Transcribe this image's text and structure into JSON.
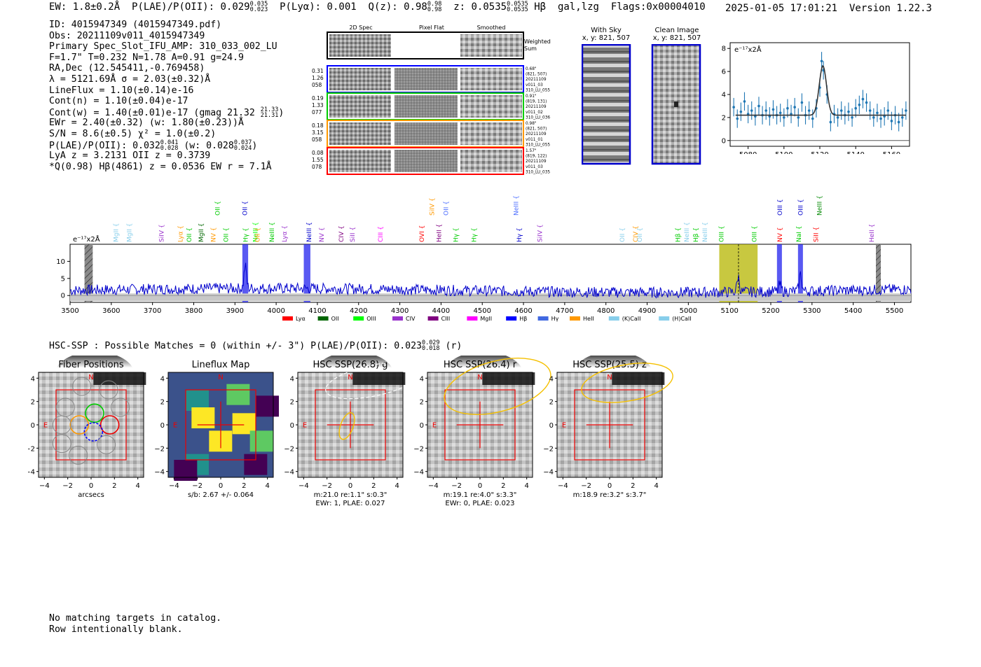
{
  "header": {
    "ew": "1.8±0.2Å",
    "plae_label": "P(LAE)/P(OII):",
    "plae_val": "0.029",
    "plae_hi": "0.035",
    "plae_lo": "0.023",
    "plya_label": "P(Lyα):",
    "plya_val": "0.001",
    "qz_label": "Q(z):",
    "qz_val": "0.98",
    "qz_hi": "0.98",
    "qz_lo": "0.98",
    "z_label": "z:",
    "z_val": "0.0535",
    "z_hi": "0.0535",
    "z_lo": "0.0535",
    "z_line": "Hβ",
    "tags": "gal,lzg",
    "flags": "Flags:0x00004010",
    "timestamp": "2025-01-05 17:01:21",
    "version": "Version 1.22.3"
  },
  "info": {
    "id": "ID: 4015947349 (4015947349.pdf)",
    "obs": "Obs: 20211109v011_4015947349",
    "slot": "Primary Spec_Slot_IFU_AMP: 310_033_002_LU",
    "params": "F=1.7\"  T=0.232  N=1.78  A=0.91  g=24.9",
    "radec": "RA,Dec (12.545411,-0.769458)",
    "lambda": "λ = 5121.69Å   σ = 2.03(±0.32)Å",
    "lineflux": "LineFlux = 1.10(±0.14)e-16",
    "contn": "Cont(n) = 1.10(±0.04)e-17",
    "contw": "Cont(w) = 1.40(±0.01)e-17 (gmag 21.32",
    "contw_hi": "21.33",
    "contw_lo": "21.31",
    "ewr": "EWr = 2.40(±0.32) (w: 1.80(±0.23))Å",
    "sn": "S/N = 8.6(±0.5)  χ² = 1.0(±0.2)",
    "plae2": "P(LAE)/P(OII): 0.032",
    "plae2_hi": "0.041",
    "plae2_lo": "0.028",
    "plae2_w": "(w: 0.028",
    "plae2_w_hi": "0.037",
    "plae2_w_lo": "0.024",
    "lya": "LyA z = 3.2131  OII z = 0.3739",
    "q": "*Q(0.98) Hβ(4861) z = 0.0536  EW r = 7.1Å"
  },
  "cutouts": {
    "col_headers": [
      "2D Spec",
      "Pixel Flat",
      "Smoothed"
    ],
    "weighted_label": "Weighted Sum",
    "rows": [
      {
        "left": [
          "0.31",
          "1.26",
          "058"
        ],
        "right": [
          "0.68\"",
          "(821, 507)",
          "20211109",
          "v011_03",
          "310_LU_055"
        ],
        "color": "#0000ff"
      },
      {
        "left": [
          "0.19",
          "1.33",
          "077"
        ],
        "right": [
          "0.91\"",
          "(819, 131)",
          "20211109",
          "v011_02",
          "310_LU_036"
        ],
        "color": "#00cc00"
      },
      {
        "left": [
          "0.18",
          "3.15",
          "058"
        ],
        "right": [
          "0.98\"",
          "(821, 507)",
          "20211109",
          "v011_01",
          "310_LU_055"
        ],
        "color": "#ff9900"
      },
      {
        "left": [
          "0.08",
          "1.55",
          "078"
        ],
        "right": [
          "1.57\"",
          "(819, 122)",
          "20211109",
          "v011_03",
          "310_LU_035"
        ],
        "color": "#ff0000"
      }
    ]
  },
  "images": {
    "with_sky": "With Sky",
    "with_sky_xy": "x, y: 821, 507",
    "clean": "Clean Image",
    "clean_xy": "x, y: 821, 507"
  },
  "zoom_chart": {
    "type": "line",
    "yunit": "e⁻¹⁷x2Å",
    "xlim": [
      5070,
      5170
    ],
    "ylim": [
      -0.5,
      8.5
    ],
    "xticks": [
      5080,
      5100,
      5120,
      5140,
      5160
    ],
    "yticks": [
      0,
      2,
      4,
      6,
      8
    ],
    "points": [
      {
        "x": 5072,
        "y": 2.9
      },
      {
        "x": 5074,
        "y": 1.9
      },
      {
        "x": 5076,
        "y": 2.5
      },
      {
        "x": 5078,
        "y": 3.4
      },
      {
        "x": 5080,
        "y": 2.3
      },
      {
        "x": 5082,
        "y": 2.6
      },
      {
        "x": 5084,
        "y": 2.1
      },
      {
        "x": 5086,
        "y": 3.0
      },
      {
        "x": 5088,
        "y": 2.2
      },
      {
        "x": 5090,
        "y": 2.6
      },
      {
        "x": 5092,
        "y": 2.1
      },
      {
        "x": 5094,
        "y": 2.7
      },
      {
        "x": 5096,
        "y": 2.2
      },
      {
        "x": 5098,
        "y": 2.4
      },
      {
        "x": 5100,
        "y": 2.0
      },
      {
        "x": 5102,
        "y": 2.8
      },
      {
        "x": 5104,
        "y": 2.3
      },
      {
        "x": 5106,
        "y": 2.9
      },
      {
        "x": 5108,
        "y": 2.0
      },
      {
        "x": 5110,
        "y": 3.3
      },
      {
        "x": 5112,
        "y": 2.2
      },
      {
        "x": 5114,
        "y": 2.6
      },
      {
        "x": 5116,
        "y": 1.9
      },
      {
        "x": 5118,
        "y": 2.8
      },
      {
        "x": 5120,
        "y": 4.6
      },
      {
        "x": 5121,
        "y": 6.9
      },
      {
        "x": 5122,
        "y": 6.1
      },
      {
        "x": 5124,
        "y": 4.0
      },
      {
        "x": 5126,
        "y": 1.6
      },
      {
        "x": 5128,
        "y": 2.3
      },
      {
        "x": 5130,
        "y": 2.0
      },
      {
        "x": 5132,
        "y": 2.6
      },
      {
        "x": 5134,
        "y": 2.2
      },
      {
        "x": 5136,
        "y": 2.5
      },
      {
        "x": 5138,
        "y": 2.0
      },
      {
        "x": 5140,
        "y": 2.8
      },
      {
        "x": 5142,
        "y": 3.1
      },
      {
        "x": 5144,
        "y": 3.6
      },
      {
        "x": 5146,
        "y": 3.3
      },
      {
        "x": 5148,
        "y": 2.6
      },
      {
        "x": 5150,
        "y": 2.0
      },
      {
        "x": 5152,
        "y": 2.4
      },
      {
        "x": 5154,
        "y": 1.9
      },
      {
        "x": 5156,
        "y": 2.1
      },
      {
        "x": 5158,
        "y": 2.6
      },
      {
        "x": 5160,
        "y": 1.7
      },
      {
        "x": 5162,
        "y": 2.2
      },
      {
        "x": 5164,
        "y": 1.6
      },
      {
        "x": 5166,
        "y": 2.0
      },
      {
        "x": 5168,
        "y": 2.6
      }
    ],
    "model": {
      "baseline": 2.2,
      "amp": 4.3,
      "center": 5121.69,
      "sigma": 2.03
    }
  },
  "spectrum": {
    "type": "line",
    "yunit": "e⁻¹⁷x2Å",
    "xlim": [
      3500,
      5540
    ],
    "ylim": [
      -2,
      15
    ],
    "xticks": [
      3500,
      3600,
      3700,
      3800,
      3900,
      4000,
      4100,
      4200,
      4300,
      4400,
      4500,
      4600,
      4700,
      4800,
      4900,
      5000,
      5100,
      5200,
      5300,
      5400,
      5500
    ],
    "yticks": [
      0,
      5,
      10
    ],
    "peaks": [
      {
        "x": 3925,
        "amp": 6.5,
        "w": 3
      },
      {
        "x": 5121,
        "amp": 4.5,
        "w": 3
      },
      {
        "x": 5272,
        "amp": 5.0,
        "w": 3
      },
      {
        "x": 5222,
        "amp": 2.0,
        "w": 3
      }
    ],
    "bands": [
      {
        "x0": 3535,
        "x1": 3555,
        "color": "#555555",
        "hatch": true
      },
      {
        "x0": 3918,
        "x1": 3932,
        "color": "#2222ee"
      },
      {
        "x0": 4067,
        "x1": 4083,
        "color": "#2222ee"
      },
      {
        "x0": 5075,
        "x1": 5168,
        "color": "#b5b500"
      },
      {
        "x0": 5215,
        "x1": 5227,
        "color": "#2222ee"
      },
      {
        "x0": 5266,
        "x1": 5278,
        "color": "#2222ee"
      },
      {
        "x0": 5455,
        "x1": 5467,
        "color": "#555555",
        "hatch": true
      }
    ],
    "lines_low": [
      {
        "x": 3611,
        "name": "MgII",
        "color": "#87ceeb"
      },
      {
        "x": 3644,
        "name": "MgII",
        "color": "#87ceeb"
      },
      {
        "x": 3722,
        "name": "SiIV",
        "color": "#9932cc"
      },
      {
        "x": 3768,
        "name": "Lyα",
        "color": "#ff9900"
      },
      {
        "x": 3789,
        "name": "OII",
        "color": "#00cc00"
      },
      {
        "x": 3818,
        "name": "MgII",
        "color": "#006600"
      },
      {
        "x": 3848,
        "name": "NV",
        "color": "#ff9900"
      },
      {
        "x": 3878,
        "name": "OII",
        "color": "#00cc00"
      },
      {
        "x": 3926,
        "name": "Hγ",
        "color": "#00cc00"
      },
      {
        "x": 3950,
        "name": "NeIII",
        "color": "#00ff00"
      },
      {
        "x": 3955,
        "name": "OII",
        "color": "#ff9900"
      },
      {
        "x": 3990,
        "name": "NeIII",
        "color": "#00cc00"
      },
      {
        "x": 4020,
        "name": "Lyα",
        "color": "#9932cc"
      },
      {
        "x": 4080,
        "name": "NeIII",
        "color": "#0000cc"
      },
      {
        "x": 4110,
        "name": "NV",
        "color": "#9932cc"
      },
      {
        "x": 4158,
        "name": "CIV",
        "color": "#800080"
      },
      {
        "x": 4185,
        "name": "SiII",
        "color": "#9932cc"
      },
      {
        "x": 4253,
        "name": "CIII",
        "color": "#ff00ff"
      },
      {
        "x": 4353,
        "name": "OVI",
        "color": "#ff0000"
      },
      {
        "x": 4395,
        "name": "HeII",
        "color": "#800080"
      },
      {
        "x": 4436,
        "name": "Hγ",
        "color": "#00cc00"
      },
      {
        "x": 4480,
        "name": "Hγ",
        "color": "#00cc00"
      },
      {
        "x": 4590,
        "name": "Hγ",
        "color": "#0000cc"
      },
      {
        "x": 4640,
        "name": "SiIV",
        "color": "#9932cc"
      },
      {
        "x": 4840,
        "name": "OII",
        "color": "#87ceeb"
      },
      {
        "x": 4872,
        "name": "CIV",
        "color": "#ff9900"
      },
      {
        "x": 4882,
        "name": "OII",
        "color": "#87ceeb"
      },
      {
        "x": 4975,
        "name": "Hβ",
        "color": "#00cc00"
      },
      {
        "x": 4996,
        "name": "NeIII",
        "color": "#87ceeb"
      },
      {
        "x": 5018,
        "name": "Hβ",
        "color": "#00cc00"
      },
      {
        "x": 5040,
        "name": "NeIII",
        "color": "#87ceeb"
      },
      {
        "x": 5080,
        "name": "OIII",
        "color": "#00cc00"
      },
      {
        "x": 5160,
        "name": "OIII",
        "color": "#00cc00"
      },
      {
        "x": 5222,
        "name": "NV",
        "color": "#ff0000"
      },
      {
        "x": 5268,
        "name": "NaI",
        "color": "#00cc00"
      },
      {
        "x": 5310,
        "name": "SiII",
        "color": "#ff0000"
      },
      {
        "x": 5445,
        "name": "HeII",
        "color": "#9932cc"
      }
    ],
    "lines_high": [
      {
        "x": 3858,
        "name": "OII",
        "color": "#00cc00"
      },
      {
        "x": 3924,
        "name": "OII",
        "color": "#0000cc"
      },
      {
        "x": 4378,
        "name": "SiIV",
        "color": "#ff9900"
      },
      {
        "x": 4412,
        "name": "OII",
        "color": "#4a6cff"
      },
      {
        "x": 4582,
        "name": "NeIII",
        "color": "#4a6cff"
      },
      {
        "x": 5222,
        "name": "OIII",
        "color": "#0000cc"
      },
      {
        "x": 5272,
        "name": "OIII",
        "color": "#0000cc"
      },
      {
        "x": 5318,
        "name": "NeIII",
        "color": "#008800"
      }
    ],
    "legend": [
      {
        "name": "Lyα",
        "color": "#ff0000"
      },
      {
        "name": "OII",
        "color": "#006600"
      },
      {
        "name": "OIII",
        "color": "#00ff00"
      },
      {
        "name": "CIV",
        "color": "#9932cc"
      },
      {
        "name": "CIII",
        "color": "#800080"
      },
      {
        "name": "MgII",
        "color": "#ff00ff"
      },
      {
        "name": "Hβ",
        "color": "#0000ff"
      },
      {
        "name": "Hγ",
        "color": "#4169e1"
      },
      {
        "name": "HeII",
        "color": "#ff9900"
      },
      {
        "name": "(K)CaII",
        "color": "#87ceeb"
      },
      {
        "name": "(H)CaII",
        "color": "#87ceeb"
      }
    ]
  },
  "hsc": {
    "summary_label": "HSC-SSP : Possible Matches = 0 (within +/- 3\")  P(LAE)/P(OII): 0.023",
    "summary_hi": "0.029",
    "summary_lo": "0.018",
    "summary_band": "(r)",
    "panels": [
      {
        "title": "Fiber Positions",
        "cap1": "arcsecs",
        "cap2": ""
      },
      {
        "title": "Lineflux Map",
        "cap1": "s/b: 2.67 +/- 0.064",
        "cap2": ""
      },
      {
        "title": "HSC SSP(26.8) g",
        "cap1": "m:21.0  re:1.1\"  s:0.3\"",
        "cap2": "EWr: 1, PLAE: 0.027"
      },
      {
        "title": "HSC SSP(26.4) r",
        "cap1": "m:19.1  re:4.0\"  s:3.3\"",
        "cap2": "EWr: 0, PLAE: 0.023"
      },
      {
        "title": "HSC SSP(25.5) z",
        "cap1": "m:18.9  re:3.2\"  s:3.7\"",
        "cap2": ""
      }
    ],
    "north": "N",
    "east": "E",
    "ticks": [
      "4",
      "2",
      "0",
      "−2",
      "−4"
    ],
    "xticks": [
      "−4",
      "−2",
      "0",
      "2",
      "4"
    ]
  },
  "footer": {
    "line1": "No matching targets in catalog.",
    "line2": "Row intentionally blank."
  }
}
